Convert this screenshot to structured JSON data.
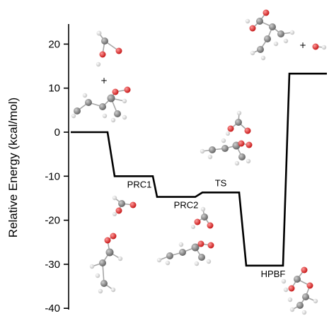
{
  "chart_data": {
    "type": "line",
    "title": "",
    "xlabel": "",
    "ylabel": "Relative Energy (kcal/mol)",
    "ylim": [
      -40,
      25
    ],
    "yticks": [
      20,
      10,
      0,
      -10,
      -20,
      -30,
      -40
    ],
    "grid": false,
    "series": [
      {
        "points": [
          {
            "label": "",
            "y": 0
          },
          {
            "label": "PRC1",
            "y": -10
          },
          {
            "label": "PRC2",
            "y": -14.7
          },
          {
            "label": "TS",
            "y": -13.7
          },
          {
            "label": "HPBF",
            "y": -30.3
          },
          {
            "label": "",
            "y": 13.3
          }
        ]
      }
    ],
    "annotations": [
      "+",
      "+"
    ],
    "colors": {
      "line": "#000000",
      "oxygen": "#e41a1c",
      "carbon": "#7f7f7f",
      "hydrogen": "#e6e6e6"
    }
  }
}
